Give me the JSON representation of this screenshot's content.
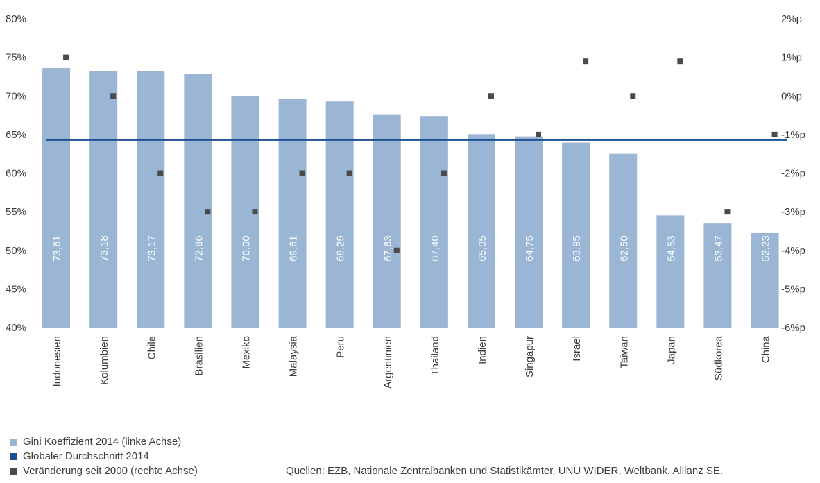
{
  "chart_data": {
    "type": "bar",
    "categories": [
      "Indonesien",
      "Kolumbien",
      "Chile",
      "Brasilien",
      "Mexiko",
      "Malaysia",
      "Peru",
      "Argentinien",
      "Thailand",
      "Indien",
      "Singapur",
      "Israel",
      "Taiwan",
      "Japan",
      "Südkorea",
      "China"
    ],
    "series": [
      {
        "name": "Gini Koeffizient 2014 (linke Achse)",
        "type": "bar",
        "axis": "left",
        "color": "#9bb5d4",
        "values": [
          73.61,
          73.18,
          73.17,
          72.86,
          70.0,
          69.61,
          69.29,
          67.63,
          67.4,
          65.05,
          64.75,
          63.95,
          62.5,
          54.53,
          53.47,
          52.23
        ],
        "labels": [
          "73,61",
          "73,18",
          "73,17",
          "72,86",
          "70,00",
          "69,61",
          "69,29",
          "67,63",
          "67,40",
          "65,05",
          "64,75",
          "63,95",
          "62,50",
          "54,53",
          "53,47",
          "52,23"
        ]
      },
      {
        "name": "Globaler Durchschnitt 2014",
        "type": "line",
        "axis": "left",
        "color": "#1c4f91",
        "value": 64.3
      },
      {
        "name": "Veränderung seit 2000 (rechte Achse)",
        "type": "scatter",
        "axis": "right",
        "color": "#4a4a4a",
        "values": [
          1.0,
          0.0,
          -2.0,
          -3.0,
          -3.0,
          -2.0,
          -2.0,
          -4.0,
          -2.0,
          0.0,
          -1.0,
          0.9,
          0.0,
          0.9,
          -3.0,
          -1.0
        ]
      }
    ],
    "left_axis": {
      "ylim": [
        40,
        80
      ],
      "ticks": [
        "80%",
        "75%",
        "70%",
        "65%",
        "60%",
        "55%",
        "50%",
        "45%",
        "40%"
      ]
    },
    "right_axis": {
      "ylim": [
        -6,
        2
      ],
      "ticks": [
        "2%p",
        "1%p",
        "0%p",
        "-1%p",
        "-2%p",
        "-3%p",
        "-4%p",
        "-5%p",
        "-6%p"
      ]
    },
    "grid": false,
    "legend_position": "bottom-left"
  },
  "legend": [
    {
      "label": "Gini Koeffizient 2014 (linke Achse)",
      "color": "#9bb5d4"
    },
    {
      "label": "Globaler Durchschnitt 2014",
      "color": "#1c4f91"
    },
    {
      "label": "Veränderung seit 2000 (rechte Achse)",
      "color": "#4a4a4a"
    }
  ],
  "source": "Quellen: EZB, Nationale Zentralbanken und Statistikämter, UNU WIDER, Weltbank, Allianz SE."
}
